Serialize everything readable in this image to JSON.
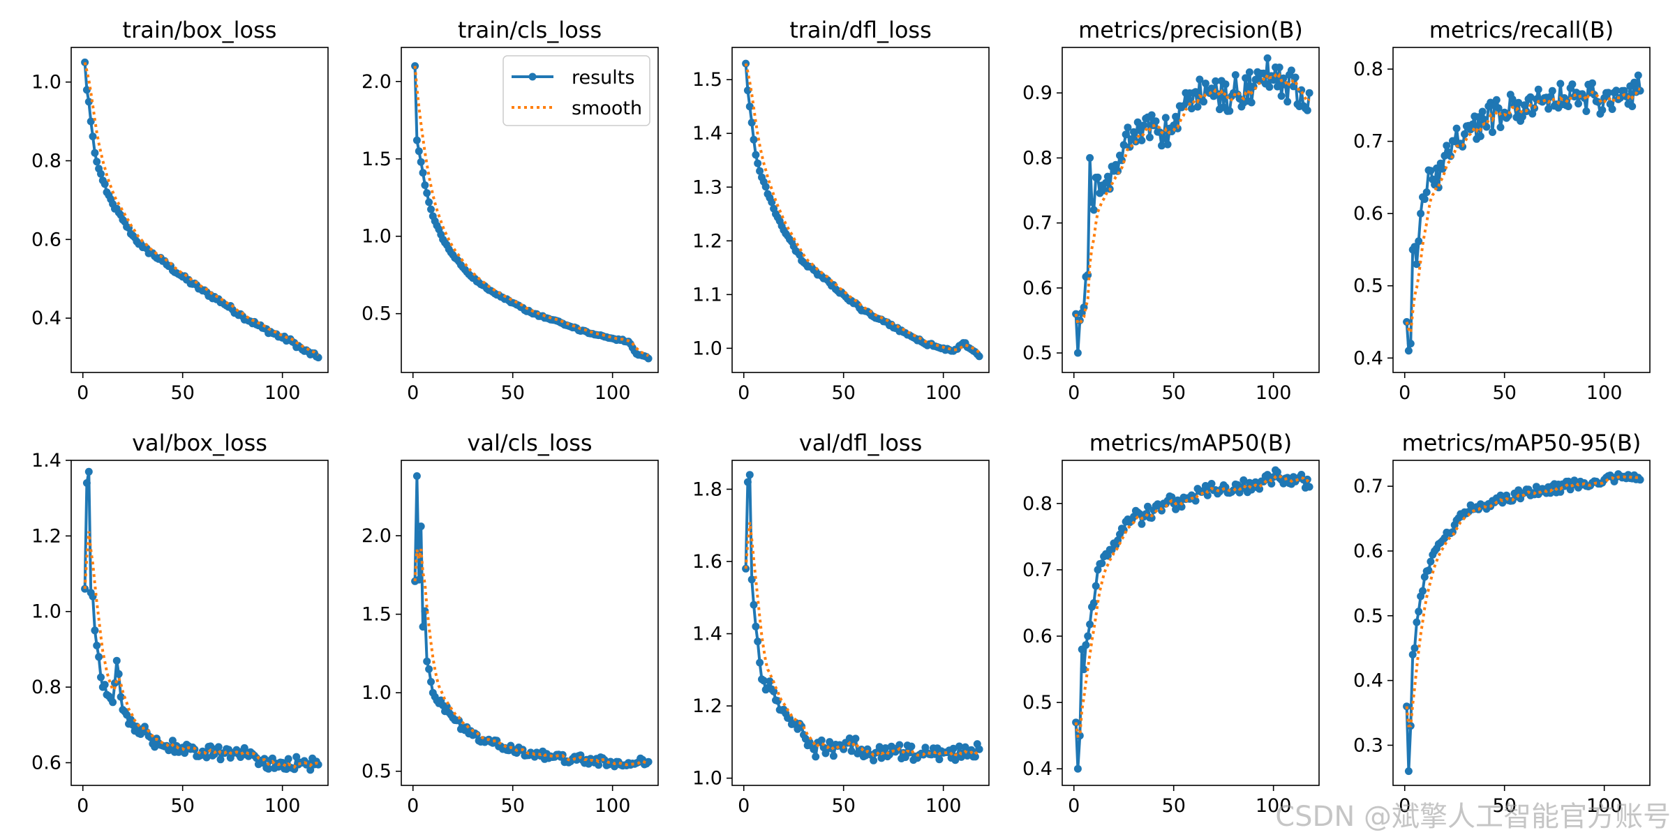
{
  "watermark": "CSDN @斌擎人工智能官方账号",
  "colors": {
    "results": "#1f77b4",
    "smooth": "#ff7f0e"
  },
  "legend": {
    "results": "results",
    "smooth": "smooth",
    "location": "upper right of train/cls_loss panel"
  },
  "chart_data": [
    {
      "type": "line",
      "title": "train/box_loss",
      "epochs": 118,
      "xlim": [
        -5.85,
        122.85
      ],
      "ylim": [
        0.262,
        1.088
      ],
      "xticks": [
        0,
        50,
        100
      ],
      "yticks": [
        0.4,
        0.6,
        0.8,
        1.0
      ],
      "ytick_labels": [
        "0.4",
        "0.6",
        "0.8",
        "1.0"
      ],
      "anchors": [
        [
          1,
          1.05
        ],
        [
          2,
          0.98
        ],
        [
          3,
          0.95
        ],
        [
          4,
          0.9
        ],
        [
          6,
          0.82
        ],
        [
          8,
          0.78
        ],
        [
          10,
          0.75
        ],
        [
          12,
          0.72
        ],
        [
          15,
          0.69
        ],
        [
          20,
          0.65
        ],
        [
          25,
          0.61
        ],
        [
          30,
          0.58
        ],
        [
          40,
          0.545
        ],
        [
          50,
          0.505
        ],
        [
          60,
          0.47
        ],
        [
          70,
          0.44
        ],
        [
          80,
          0.405
        ],
        [
          90,
          0.375
        ],
        [
          100,
          0.35
        ],
        [
          105,
          0.34
        ],
        [
          110,
          0.32
        ],
        [
          118,
          0.3
        ]
      ],
      "noise": 0.006,
      "smooth_alpha": 0.3
    },
    {
      "type": "line",
      "title": "train/cls_loss",
      "epochs": 118,
      "xlim": [
        -5.85,
        122.85
      ],
      "ylim": [
        0.12,
        2.22
      ],
      "xticks": [
        0,
        50,
        100
      ],
      "yticks": [
        0.5,
        1.0,
        1.5,
        2.0
      ],
      "ytick_labels": [
        "0.5",
        "1.0",
        "1.5",
        "2.0"
      ],
      "anchors": [
        [
          1,
          2.1
        ],
        [
          2,
          1.62
        ],
        [
          3,
          1.55
        ],
        [
          4,
          1.48
        ],
        [
          6,
          1.33
        ],
        [
          8,
          1.22
        ],
        [
          10,
          1.13
        ],
        [
          15,
          0.98
        ],
        [
          20,
          0.88
        ],
        [
          25,
          0.8
        ],
        [
          30,
          0.73
        ],
        [
          40,
          0.64
        ],
        [
          50,
          0.57
        ],
        [
          60,
          0.5
        ],
        [
          70,
          0.46
        ],
        [
          80,
          0.41
        ],
        [
          90,
          0.37
        ],
        [
          100,
          0.34
        ],
        [
          108,
          0.32
        ],
        [
          110,
          0.28
        ],
        [
          112,
          0.24
        ],
        [
          118,
          0.21
        ]
      ],
      "noise": 0.006,
      "smooth_alpha": 0.3
    },
    {
      "type": "line",
      "title": "train/dfl_loss",
      "epochs": 118,
      "xlim": [
        -5.85,
        122.85
      ],
      "ylim": [
        0.955,
        1.56
      ],
      "xticks": [
        0,
        50,
        100
      ],
      "yticks": [
        1.0,
        1.1,
        1.2,
        1.3,
        1.4,
        1.5
      ],
      "ytick_labels": [
        "1.0",
        "1.1",
        "1.2",
        "1.3",
        "1.4",
        "1.5"
      ],
      "anchors": [
        [
          1,
          1.53
        ],
        [
          2,
          1.48
        ],
        [
          3,
          1.45
        ],
        [
          4,
          1.42
        ],
        [
          6,
          1.36
        ],
        [
          8,
          1.33
        ],
        [
          10,
          1.31
        ],
        [
          15,
          1.26
        ],
        [
          20,
          1.22
        ],
        [
          25,
          1.19
        ],
        [
          30,
          1.16
        ],
        [
          40,
          1.13
        ],
        [
          50,
          1.1
        ],
        [
          60,
          1.07
        ],
        [
          70,
          1.05
        ],
        [
          80,
          1.03
        ],
        [
          90,
          1.01
        ],
        [
          100,
          1.0
        ],
        [
          105,
          0.995
        ],
        [
          110,
          1.01
        ],
        [
          118,
          0.985
        ]
      ],
      "noise": 0.003,
      "smooth_alpha": 0.3
    },
    {
      "type": "line",
      "title": "metrics/precision(B)",
      "epochs": 118,
      "xlim": [
        -5.85,
        122.85
      ],
      "ylim": [
        0.47,
        0.97
      ],
      "xticks": [
        0,
        50,
        100
      ],
      "yticks": [
        0.5,
        0.6,
        0.7,
        0.8,
        0.9
      ],
      "ytick_labels": [
        "0.5",
        "0.6",
        "0.7",
        "0.8",
        "0.9"
      ],
      "anchors": [
        [
          1,
          0.56
        ],
        [
          2,
          0.5
        ],
        [
          3,
          0.55
        ],
        [
          5,
          0.57
        ],
        [
          7,
          0.62
        ],
        [
          8,
          0.8
        ],
        [
          10,
          0.72
        ],
        [
          12,
          0.77
        ],
        [
          15,
          0.75
        ],
        [
          20,
          0.78
        ],
        [
          25,
          0.82
        ],
        [
          30,
          0.84
        ],
        [
          35,
          0.85
        ],
        [
          40,
          0.85
        ],
        [
          45,
          0.83
        ],
        [
          50,
          0.85
        ],
        [
          55,
          0.88
        ],
        [
          60,
          0.9
        ],
        [
          70,
          0.895
        ],
        [
          80,
          0.9
        ],
        [
          90,
          0.91
        ],
        [
          95,
          0.93
        ],
        [
          100,
          0.92
        ],
        [
          110,
          0.91
        ],
        [
          115,
          0.88
        ],
        [
          118,
          0.9
        ]
      ],
      "noise": 0.028,
      "smooth_alpha": 0.25
    },
    {
      "type": "line",
      "title": "metrics/recall(B)",
      "epochs": 118,
      "xlim": [
        -5.85,
        122.85
      ],
      "ylim": [
        0.38,
        0.83
      ],
      "xticks": [
        0,
        50,
        100
      ],
      "yticks": [
        0.4,
        0.5,
        0.6,
        0.7,
        0.8
      ],
      "ytick_labels": [
        "0.4",
        "0.5",
        "0.6",
        "0.7",
        "0.8"
      ],
      "anchors": [
        [
          1,
          0.45
        ],
        [
          2,
          0.41
        ],
        [
          3,
          0.42
        ],
        [
          4,
          0.55
        ],
        [
          6,
          0.53
        ],
        [
          8,
          0.6
        ],
        [
          10,
          0.62
        ],
        [
          12,
          0.66
        ],
        [
          15,
          0.64
        ],
        [
          20,
          0.68
        ],
        [
          25,
          0.7
        ],
        [
          30,
          0.71
        ],
        [
          40,
          0.73
        ],
        [
          50,
          0.74
        ],
        [
          55,
          0.75
        ],
        [
          60,
          0.75
        ],
        [
          70,
          0.76
        ],
        [
          80,
          0.76
        ],
        [
          90,
          0.76
        ],
        [
          100,
          0.76
        ],
        [
          110,
          0.77
        ],
        [
          118,
          0.77
        ]
      ],
      "noise": 0.022,
      "smooth_alpha": 0.25
    },
    {
      "type": "line",
      "title": "val/box_loss",
      "epochs": 118,
      "xlim": [
        -5.85,
        122.85
      ],
      "ylim": [
        0.54,
        1.4
      ],
      "xticks": [
        0,
        50,
        100
      ],
      "yticks": [
        0.6,
        0.8,
        1.0,
        1.2,
        1.4
      ],
      "ytick_labels": [
        "0.6",
        "0.8",
        "1.0",
        "1.2",
        "1.4"
      ],
      "anchors": [
        [
          1,
          1.06
        ],
        [
          2,
          1.34
        ],
        [
          3,
          1.37
        ],
        [
          4,
          1.05
        ],
        [
          5,
          1.04
        ],
        [
          6,
          0.95
        ],
        [
          7,
          0.91
        ],
        [
          8,
          0.88
        ],
        [
          10,
          0.8
        ],
        [
          12,
          0.78
        ],
        [
          15,
          0.76
        ],
        [
          17,
          0.87
        ],
        [
          20,
          0.74
        ],
        [
          25,
          0.7
        ],
        [
          30,
          0.69
        ],
        [
          35,
          0.65
        ],
        [
          40,
          0.645
        ],
        [
          50,
          0.64
        ],
        [
          60,
          0.63
        ],
        [
          70,
          0.625
        ],
        [
          80,
          0.63
        ],
        [
          90,
          0.6
        ],
        [
          100,
          0.6
        ],
        [
          110,
          0.6
        ],
        [
          118,
          0.595
        ]
      ],
      "noise": 0.018,
      "smooth_alpha": 0.3
    },
    {
      "type": "line",
      "title": "val/cls_loss",
      "epochs": 118,
      "xlim": [
        -5.85,
        122.85
      ],
      "ylim": [
        0.41,
        2.48
      ],
      "xticks": [
        0,
        50,
        100
      ],
      "yticks": [
        0.5,
        1.0,
        1.5,
        2.0
      ],
      "ytick_labels": [
        "0.5",
        "1.0",
        "1.5",
        "2.0"
      ],
      "anchors": [
        [
          1,
          1.71
        ],
        [
          2,
          2.38
        ],
        [
          3,
          1.72
        ],
        [
          4,
          2.06
        ],
        [
          5,
          1.42
        ],
        [
          6,
          1.52
        ],
        [
          7,
          1.2
        ],
        [
          8,
          1.15
        ],
        [
          10,
          1.0
        ],
        [
          12,
          0.95
        ],
        [
          15,
          0.92
        ],
        [
          20,
          0.84
        ],
        [
          25,
          0.78
        ],
        [
          30,
          0.73
        ],
        [
          35,
          0.7
        ],
        [
          40,
          0.68
        ],
        [
          50,
          0.64
        ],
        [
          60,
          0.61
        ],
        [
          70,
          0.59
        ],
        [
          80,
          0.58
        ],
        [
          90,
          0.57
        ],
        [
          100,
          0.55
        ],
        [
          110,
          0.55
        ],
        [
          118,
          0.56
        ]
      ],
      "noise": 0.028,
      "smooth_alpha": 0.3
    },
    {
      "type": "line",
      "title": "val/dfl_loss",
      "epochs": 118,
      "xlim": [
        -5.85,
        122.85
      ],
      "ylim": [
        0.98,
        1.88
      ],
      "xticks": [
        0,
        50,
        100
      ],
      "yticks": [
        1.0,
        1.2,
        1.4,
        1.6,
        1.8
      ],
      "ytick_labels": [
        "1.0",
        "1.2",
        "1.4",
        "1.6",
        "1.8"
      ],
      "anchors": [
        [
          1,
          1.58
        ],
        [
          2,
          1.82
        ],
        [
          3,
          1.84
        ],
        [
          4,
          1.55
        ],
        [
          5,
          1.48
        ],
        [
          6,
          1.42
        ],
        [
          8,
          1.32
        ],
        [
          10,
          1.27
        ],
        [
          12,
          1.25
        ],
        [
          15,
          1.24
        ],
        [
          20,
          1.19
        ],
        [
          25,
          1.15
        ],
        [
          30,
          1.12
        ],
        [
          35,
          1.08
        ],
        [
          40,
          1.085
        ],
        [
          50,
          1.08
        ],
        [
          55,
          1.1
        ],
        [
          60,
          1.06
        ],
        [
          70,
          1.075
        ],
        [
          80,
          1.07
        ],
        [
          90,
          1.065
        ],
        [
          100,
          1.07
        ],
        [
          110,
          1.07
        ],
        [
          118,
          1.08
        ]
      ],
      "noise": 0.022,
      "smooth_alpha": 0.3
    },
    {
      "type": "line",
      "title": "metrics/mAP50(B)",
      "epochs": 118,
      "xlim": [
        -5.85,
        122.85
      ],
      "ylim": [
        0.375,
        0.865
      ],
      "xticks": [
        0,
        50,
        100
      ],
      "yticks": [
        0.4,
        0.5,
        0.6,
        0.7,
        0.8
      ],
      "ytick_labels": [
        "0.4",
        "0.5",
        "0.6",
        "0.7",
        "0.8"
      ],
      "anchors": [
        [
          1,
          0.47
        ],
        [
          2,
          0.4
        ],
        [
          3,
          0.45
        ],
        [
          4,
          0.58
        ],
        [
          5,
          0.55
        ],
        [
          7,
          0.6
        ],
        [
          10,
          0.65
        ],
        [
          12,
          0.7
        ],
        [
          15,
          0.72
        ],
        [
          20,
          0.74
        ],
        [
          25,
          0.76
        ],
        [
          30,
          0.78
        ],
        [
          35,
          0.78
        ],
        [
          40,
          0.79
        ],
        [
          45,
          0.8
        ],
        [
          50,
          0.8
        ],
        [
          60,
          0.81
        ],
        [
          70,
          0.82
        ],
        [
          80,
          0.82
        ],
        [
          90,
          0.83
        ],
        [
          100,
          0.84
        ],
        [
          110,
          0.84
        ],
        [
          118,
          0.825
        ]
      ],
      "noise": 0.012,
      "smooth_alpha": 0.3
    },
    {
      "type": "line",
      "title": "metrics/mAP50-95(B)",
      "epochs": 118,
      "xlim": [
        -5.85,
        122.85
      ],
      "ylim": [
        0.238,
        0.74
      ],
      "xticks": [
        0,
        50,
        100
      ],
      "yticks": [
        0.3,
        0.4,
        0.5,
        0.6,
        0.7
      ],
      "ytick_labels": [
        "0.3",
        "0.4",
        "0.5",
        "0.6",
        "0.7"
      ],
      "anchors": [
        [
          1,
          0.36
        ],
        [
          2,
          0.26
        ],
        [
          3,
          0.33
        ],
        [
          4,
          0.44
        ],
        [
          5,
          0.45
        ],
        [
          6,
          0.49
        ],
        [
          8,
          0.53
        ],
        [
          10,
          0.56
        ],
        [
          12,
          0.57
        ],
        [
          15,
          0.6
        ],
        [
          20,
          0.62
        ],
        [
          25,
          0.64
        ],
        [
          30,
          0.66
        ],
        [
          35,
          0.665
        ],
        [
          40,
          0.67
        ],
        [
          45,
          0.675
        ],
        [
          50,
          0.68
        ],
        [
          60,
          0.69
        ],
        [
          70,
          0.695
        ],
        [
          80,
          0.7
        ],
        [
          90,
          0.705
        ],
        [
          100,
          0.71
        ],
        [
          110,
          0.715
        ],
        [
          118,
          0.71
        ]
      ],
      "noise": 0.008,
      "smooth_alpha": 0.3
    }
  ]
}
